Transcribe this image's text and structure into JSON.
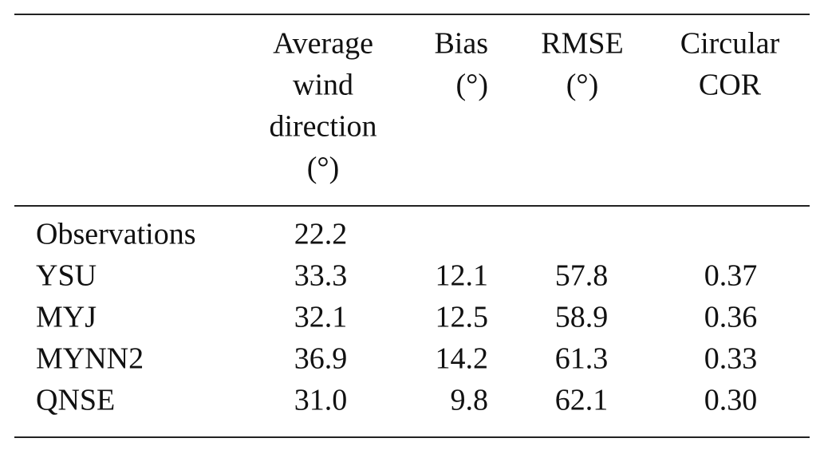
{
  "table": {
    "header": [
      [
        "Average",
        "wind",
        "direction",
        "(°)"
      ],
      [
        "Bias",
        "(°)"
      ],
      [
        "RMSE",
        "(°)"
      ],
      [
        "Circular",
        "COR"
      ]
    ],
    "rows": [
      [
        "Observations",
        "22.2"
      ],
      [
        "YSU",
        "33.3",
        "12.1",
        "57.8",
        "0.37"
      ],
      [
        "MYJ",
        "32.1",
        "12.5",
        "58.9",
        "0.36"
      ],
      [
        "MYNN2",
        "36.9",
        "14.2",
        "61.3",
        "0.33"
      ],
      [
        "QNSE",
        "31.0",
        "9.8",
        "62.1",
        "0.30"
      ]
    ]
  }
}
